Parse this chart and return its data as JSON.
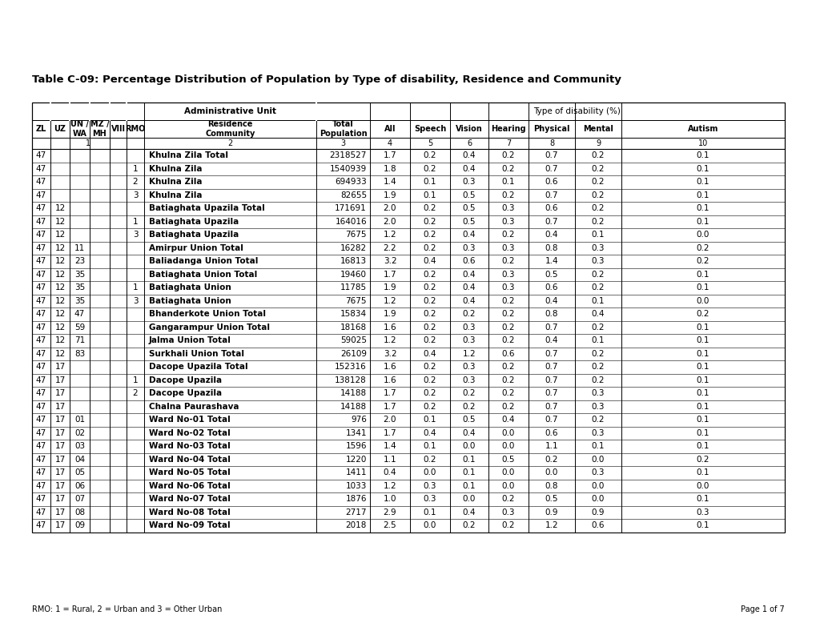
{
  "title": "Table C-09: Percentage Distribution of Population by Type of disability, Residence and Community",
  "footer_left": "RMO: 1 = Rural, 2 = Urban and 3 = Other Urban",
  "footer_right": "Page 1 of 7",
  "rows": [
    [
      "47",
      "",
      "",
      "",
      "",
      "",
      "Khulna Zila Total",
      "2318527",
      "1.7",
      "0.2",
      "0.4",
      "0.2",
      "0.7",
      "0.2",
      "0.1"
    ],
    [
      "47",
      "",
      "",
      "",
      "",
      "1",
      "Khulna Zila",
      "1540939",
      "1.8",
      "0.2",
      "0.4",
      "0.2",
      "0.7",
      "0.2",
      "0.1"
    ],
    [
      "47",
      "",
      "",
      "",
      "",
      "2",
      "Khulna Zila",
      "694933",
      "1.4",
      "0.1",
      "0.3",
      "0.1",
      "0.6",
      "0.2",
      "0.1"
    ],
    [
      "47",
      "",
      "",
      "",
      "",
      "3",
      "Khulna Zila",
      "82655",
      "1.9",
      "0.1",
      "0.5",
      "0.2",
      "0.7",
      "0.2",
      "0.1"
    ],
    [
      "47",
      "12",
      "",
      "",
      "",
      "",
      "Batiaghata Upazila Total",
      "171691",
      "2.0",
      "0.2",
      "0.5",
      "0.3",
      "0.6",
      "0.2",
      "0.1"
    ],
    [
      "47",
      "12",
      "",
      "",
      "",
      "1",
      "Batiaghata Upazila",
      "164016",
      "2.0",
      "0.2",
      "0.5",
      "0.3",
      "0.7",
      "0.2",
      "0.1"
    ],
    [
      "47",
      "12",
      "",
      "",
      "",
      "3",
      "Batiaghata Upazila",
      "7675",
      "1.2",
      "0.2",
      "0.4",
      "0.2",
      "0.4",
      "0.1",
      "0.0"
    ],
    [
      "47",
      "12",
      "11",
      "",
      "",
      "",
      "Amirpur Union Total",
      "16282",
      "2.2",
      "0.2",
      "0.3",
      "0.3",
      "0.8",
      "0.3",
      "0.2"
    ],
    [
      "47",
      "12",
      "23",
      "",
      "",
      "",
      "Baliadanga Union Total",
      "16813",
      "3.2",
      "0.4",
      "0.6",
      "0.2",
      "1.4",
      "0.3",
      "0.2"
    ],
    [
      "47",
      "12",
      "35",
      "",
      "",
      "",
      "Batiaghata Union Total",
      "19460",
      "1.7",
      "0.2",
      "0.4",
      "0.3",
      "0.5",
      "0.2",
      "0.1"
    ],
    [
      "47",
      "12",
      "35",
      "",
      "",
      "1",
      "Batiaghata Union",
      "11785",
      "1.9",
      "0.2",
      "0.4",
      "0.3",
      "0.6",
      "0.2",
      "0.1"
    ],
    [
      "47",
      "12",
      "35",
      "",
      "",
      "3",
      "Batiaghata Union",
      "7675",
      "1.2",
      "0.2",
      "0.4",
      "0.2",
      "0.4",
      "0.1",
      "0.0"
    ],
    [
      "47",
      "12",
      "47",
      "",
      "",
      "",
      "Bhanderkote Union Total",
      "15834",
      "1.9",
      "0.2",
      "0.2",
      "0.2",
      "0.8",
      "0.4",
      "0.2"
    ],
    [
      "47",
      "12",
      "59",
      "",
      "",
      "",
      "Gangarampur Union Total",
      "18168",
      "1.6",
      "0.2",
      "0.3",
      "0.2",
      "0.7",
      "0.2",
      "0.1"
    ],
    [
      "47",
      "12",
      "71",
      "",
      "",
      "",
      "Jalma Union Total",
      "59025",
      "1.2",
      "0.2",
      "0.3",
      "0.2",
      "0.4",
      "0.1",
      "0.1"
    ],
    [
      "47",
      "12",
      "83",
      "",
      "",
      "",
      "Surkhali Union Total",
      "26109",
      "3.2",
      "0.4",
      "1.2",
      "0.6",
      "0.7",
      "0.2",
      "0.1"
    ],
    [
      "47",
      "17",
      "",
      "",
      "",
      "",
      "Dacope Upazila Total",
      "152316",
      "1.6",
      "0.2",
      "0.3",
      "0.2",
      "0.7",
      "0.2",
      "0.1"
    ],
    [
      "47",
      "17",
      "",
      "",
      "",
      "1",
      "Dacope Upazila",
      "138128",
      "1.6",
      "0.2",
      "0.3",
      "0.2",
      "0.7",
      "0.2",
      "0.1"
    ],
    [
      "47",
      "17",
      "",
      "",
      "",
      "2",
      "Dacope Upazila",
      "14188",
      "1.7",
      "0.2",
      "0.2",
      "0.2",
      "0.7",
      "0.3",
      "0.1"
    ],
    [
      "47",
      "17",
      "",
      "",
      "",
      "",
      "Chalna Paurashava",
      "14188",
      "1.7",
      "0.2",
      "0.2",
      "0.2",
      "0.7",
      "0.3",
      "0.1"
    ],
    [
      "47",
      "17",
      "01",
      "",
      "",
      "",
      "Ward No-01 Total",
      "976",
      "2.0",
      "0.1",
      "0.5",
      "0.4",
      "0.7",
      "0.2",
      "0.1"
    ],
    [
      "47",
      "17",
      "02",
      "",
      "",
      "",
      "Ward No-02 Total",
      "1341",
      "1.7",
      "0.4",
      "0.4",
      "0.0",
      "0.6",
      "0.3",
      "0.1"
    ],
    [
      "47",
      "17",
      "03",
      "",
      "",
      "",
      "Ward No-03 Total",
      "1596",
      "1.4",
      "0.1",
      "0.0",
      "0.0",
      "1.1",
      "0.1",
      "0.1"
    ],
    [
      "47",
      "17",
      "04",
      "",
      "",
      "",
      "Ward No-04 Total",
      "1220",
      "1.1",
      "0.2",
      "0.1",
      "0.5",
      "0.2",
      "0.0",
      "0.2"
    ],
    [
      "47",
      "17",
      "05",
      "",
      "",
      "",
      "Ward No-05 Total",
      "1411",
      "0.4",
      "0.0",
      "0.1",
      "0.0",
      "0.0",
      "0.3",
      "0.1"
    ],
    [
      "47",
      "17",
      "06",
      "",
      "",
      "",
      "Ward No-06 Total",
      "1033",
      "1.2",
      "0.3",
      "0.1",
      "0.0",
      "0.8",
      "0.0",
      "0.0"
    ],
    [
      "47",
      "17",
      "07",
      "",
      "",
      "",
      "Ward No-07 Total",
      "1876",
      "1.0",
      "0.3",
      "0.0",
      "0.2",
      "0.5",
      "0.0",
      "0.1"
    ],
    [
      "47",
      "17",
      "08",
      "",
      "",
      "",
      "Ward No-08 Total",
      "2717",
      "2.9",
      "0.1",
      "0.4",
      "0.3",
      "0.9",
      "0.9",
      "0.3"
    ],
    [
      "47",
      "17",
      "09",
      "",
      "",
      "",
      "Ward No-09 Total",
      "2018",
      "2.5",
      "0.0",
      "0.2",
      "0.2",
      "1.2",
      "0.6",
      "0.1"
    ]
  ]
}
